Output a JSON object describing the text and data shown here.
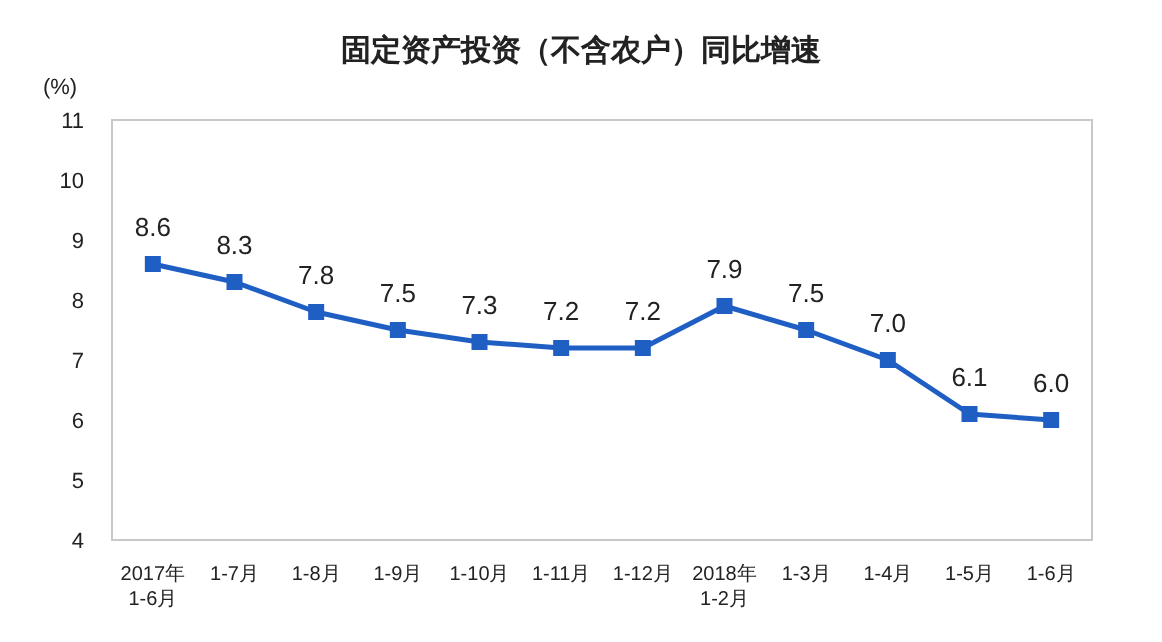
{
  "chart_data": {
    "type": "line",
    "title": "固定资产投资（不含农户）同比增速",
    "ylabel": "(%)",
    "categories": [
      "2017年\n1-6月",
      "1-7月",
      "1-8月",
      "1-9月",
      "1-10月",
      "1-11月",
      "1-12月",
      "2018年\n1-2月",
      "1-3月",
      "1-4月",
      "1-5月",
      "1-6月"
    ],
    "series": [
      {
        "color": "#1f5fc4",
        "values": [
          8.6,
          8.3,
          7.8,
          7.5,
          7.3,
          7.2,
          7.2,
          7.9,
          7.5,
          7.0,
          6.1,
          6.0
        ],
        "value_labels": [
          "8.6",
          "8.3",
          "7.8",
          "7.5",
          "7.3",
          "7.2",
          "7.2",
          "7.9",
          "7.5",
          "7.0",
          "6.1",
          "6.0"
        ]
      }
    ],
    "ylim": [
      4,
      11
    ],
    "yticks": [
      4,
      5,
      6,
      7,
      8,
      9,
      10,
      11
    ],
    "marker": "square",
    "line_style": "solid",
    "grid": false
  }
}
